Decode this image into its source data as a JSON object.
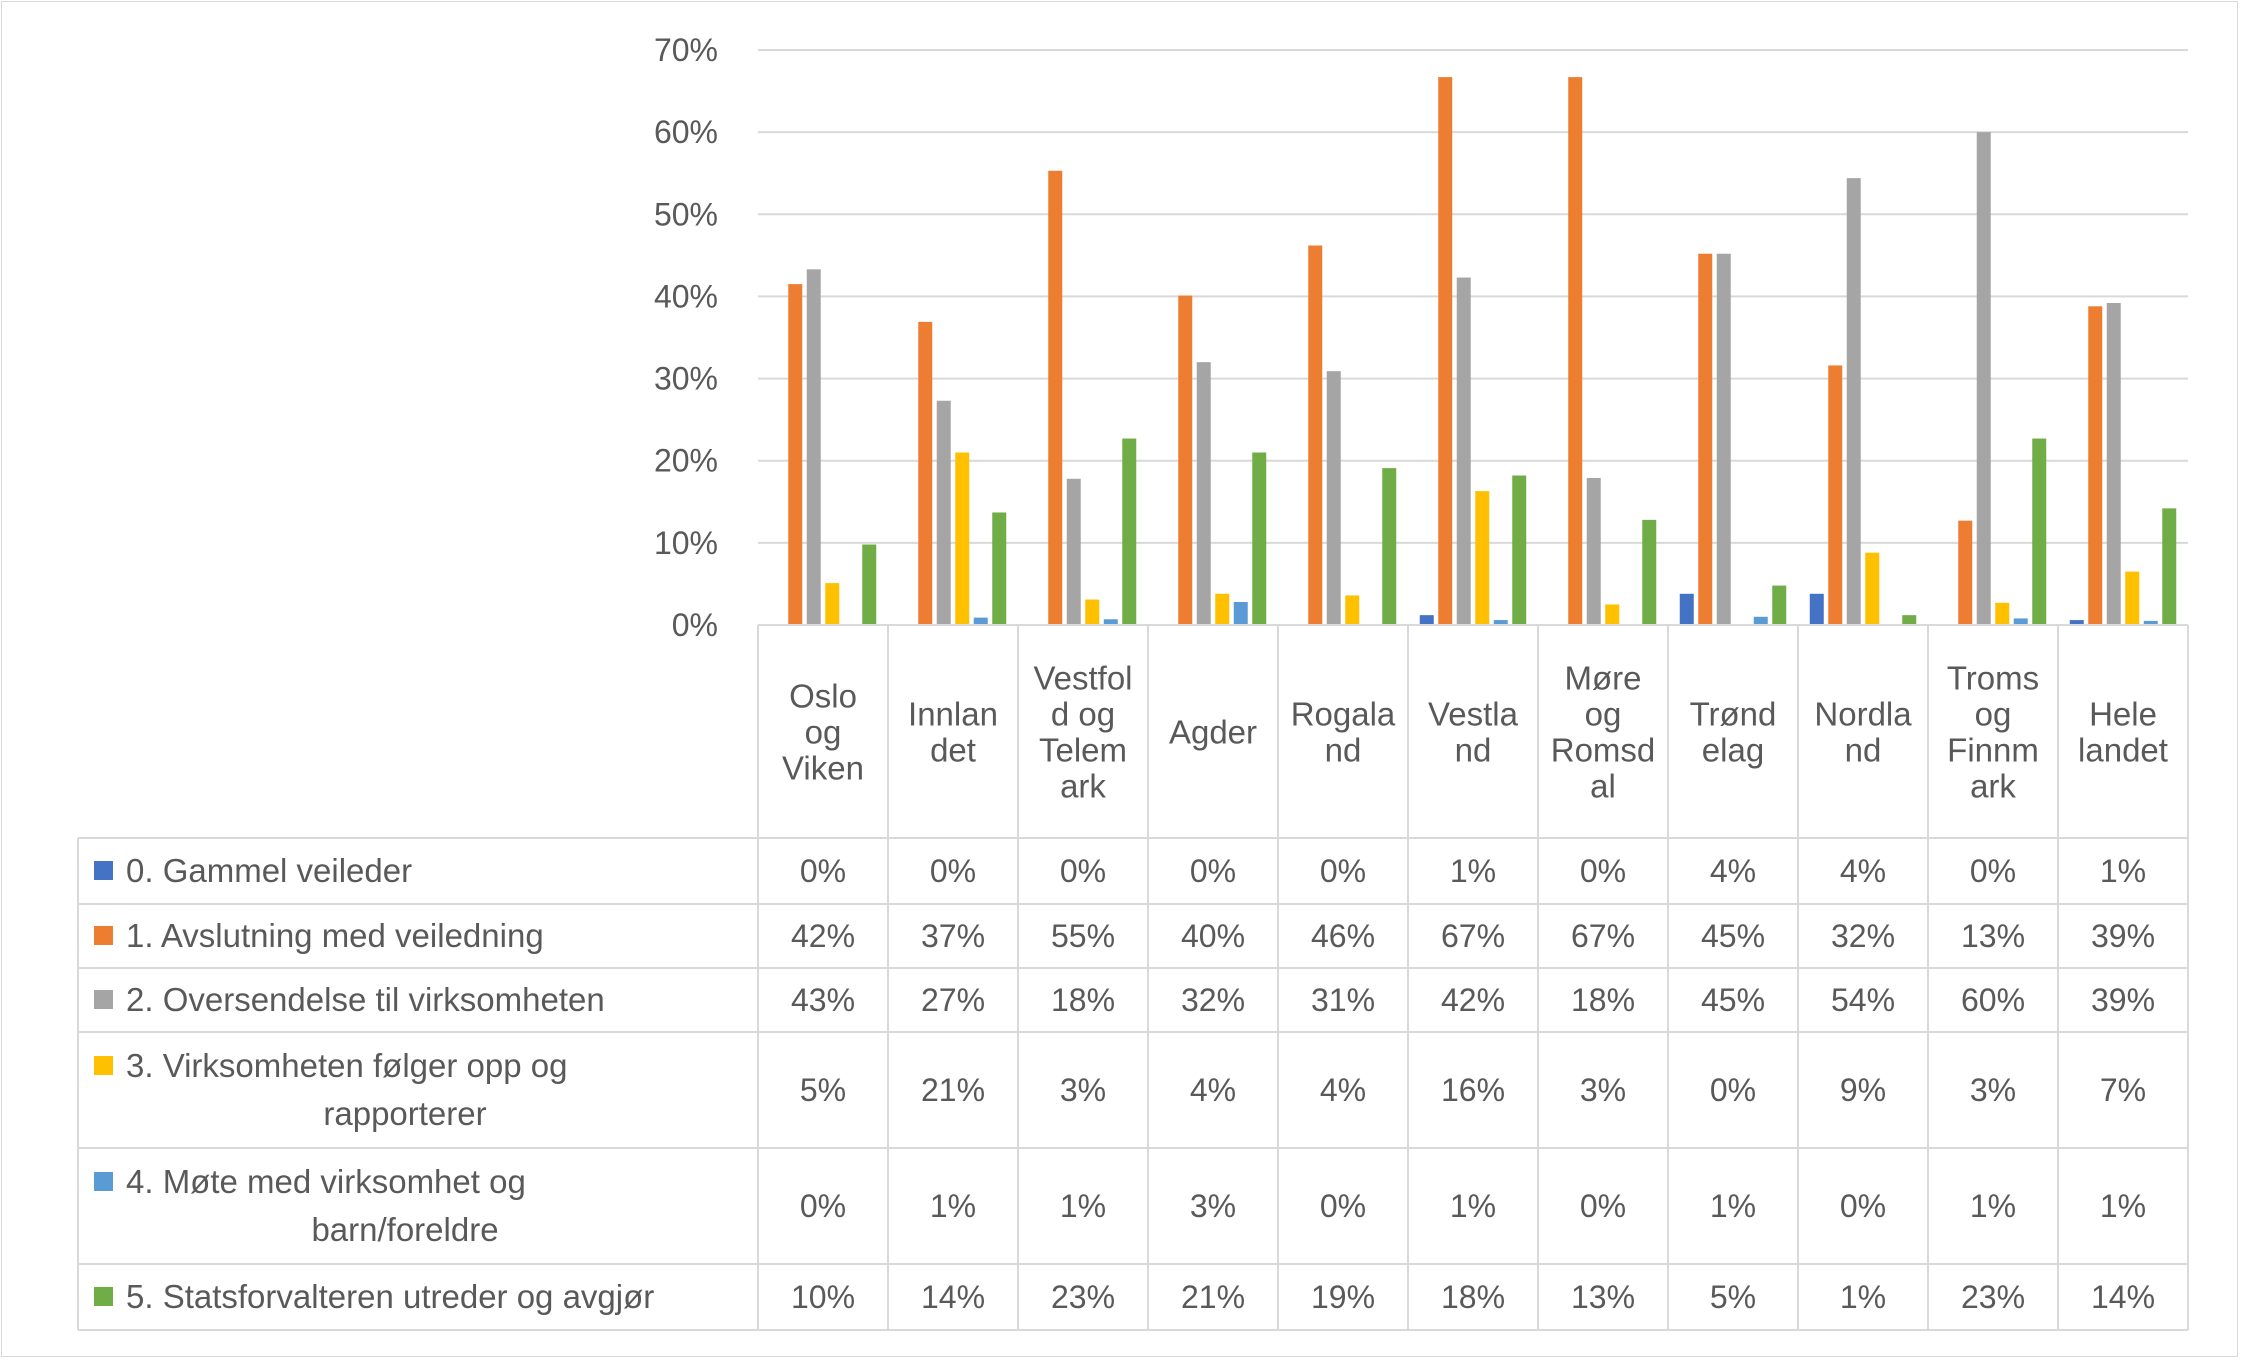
{
  "chart_data": {
    "type": "bar",
    "categories": [
      [
        "Oslo",
        "og",
        "Viken"
      ],
      [
        "Innlan",
        "det"
      ],
      [
        "Vestfol",
        "d og",
        "Telem",
        "ark"
      ],
      [
        "Agder"
      ],
      [
        "Rogala",
        "nd"
      ],
      [
        "Vestla",
        "nd"
      ],
      [
        "Møre",
        "og",
        "Romsd",
        "al"
      ],
      [
        "Trønd",
        "elag"
      ],
      [
        "Nordla",
        "nd"
      ],
      [
        "Troms",
        "og",
        "Finnm",
        "ark"
      ],
      [
        "Hele",
        "landet"
      ]
    ],
    "ylim": [
      0,
      0.7
    ],
    "yticks": [
      "0%",
      "10%",
      "20%",
      "30%",
      "40%",
      "50%",
      "60%",
      "70%"
    ],
    "grid": true,
    "legend_placement": "data table below chart",
    "series": [
      {
        "name": "0. Gammel veileder",
        "legend_lines": [
          "0. Gammel veileder"
        ],
        "color": "#4472C4",
        "values": [
          0.0,
          0.0,
          0.0,
          0.0,
          0.0,
          0.012,
          0.0,
          0.038,
          0.038,
          0.0,
          0.006
        ],
        "labels": [
          "0%",
          "0%",
          "0%",
          "0%",
          "0%",
          "1%",
          "0%",
          "4%",
          "4%",
          "0%",
          "1%"
        ]
      },
      {
        "name": "1. Avslutning med veiledning",
        "legend_lines": [
          "1. Avslutning med veiledning"
        ],
        "color": "#ED7D31",
        "values": [
          0.415,
          0.369,
          0.553,
          0.401,
          0.462,
          0.667,
          0.667,
          0.452,
          0.316,
          0.127,
          0.388
        ],
        "labels": [
          "42%",
          "37%",
          "55%",
          "40%",
          "46%",
          "67%",
          "67%",
          "45%",
          "32%",
          "13%",
          "39%"
        ]
      },
      {
        "name": "2. Oversendelse til virksomheten",
        "legend_lines": [
          "2. Oversendelse til virksomheten"
        ],
        "color": "#A5A5A5",
        "values": [
          0.433,
          0.273,
          0.178,
          0.32,
          0.309,
          0.423,
          0.179,
          0.452,
          0.544,
          0.6,
          0.392
        ],
        "labels": [
          "43%",
          "27%",
          "18%",
          "32%",
          "31%",
          "42%",
          "18%",
          "45%",
          "54%",
          "60%",
          "39%"
        ]
      },
      {
        "name": "3. Virksomheten følger opp og rapporterer",
        "legend_lines": [
          "3. Virksomheten følger opp og",
          "rapporterer"
        ],
        "color": "#FFC000",
        "values": [
          0.051,
          0.21,
          0.031,
          0.038,
          0.036,
          0.163,
          0.025,
          0.0,
          0.088,
          0.027,
          0.065
        ],
        "labels": [
          "5%",
          "21%",
          "3%",
          "4%",
          "4%",
          "16%",
          "3%",
          "0%",
          "9%",
          "3%",
          "7%"
        ]
      },
      {
        "name": "4. Møte med virksomhet og barn/foreldre",
        "legend_lines": [
          "4. Møte med virksomhet og",
          "barn/foreldre"
        ],
        "color": "#5B9BD5",
        "values": [
          0.0,
          0.009,
          0.007,
          0.028,
          0.0,
          0.006,
          0.0,
          0.01,
          0.0,
          0.008,
          0.005
        ],
        "labels": [
          "0%",
          "1%",
          "1%",
          "3%",
          "0%",
          "1%",
          "0%",
          "1%",
          "0%",
          "1%",
          "1%"
        ]
      },
      {
        "name": "5. Statsforvalteren utreder og avgjør",
        "legend_lines": [
          "5. Statsforvalteren utreder og avgjør"
        ],
        "color": "#70AD47",
        "values": [
          0.098,
          0.137,
          0.227,
          0.21,
          0.191,
          0.182,
          0.128,
          0.048,
          0.012,
          0.227,
          0.142
        ],
        "labels": [
          "10%",
          "14%",
          "23%",
          "21%",
          "19%",
          "18%",
          "13%",
          "5%",
          "1%",
          "23%",
          "14%"
        ]
      }
    ]
  }
}
